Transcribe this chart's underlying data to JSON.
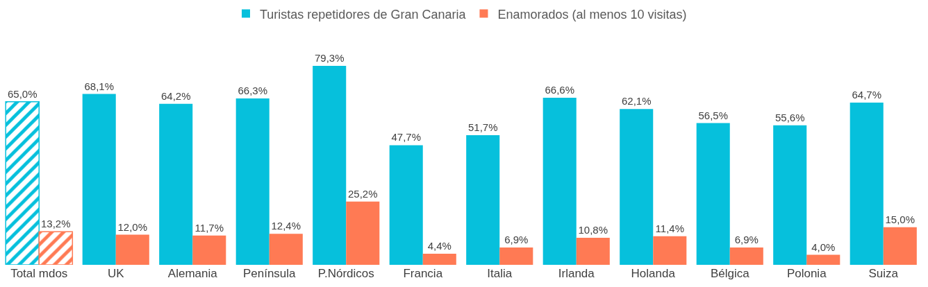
{
  "chart_data": {
    "type": "bar",
    "categories": [
      "Total mdos",
      "UK",
      "Alemania",
      "Península",
      "P.Nórdicos",
      "Francia",
      "Italia",
      "Irlanda",
      "Holanda",
      "Bélgica",
      "Polonia",
      "Suiza"
    ],
    "series": [
      {
        "name": "Turistas repetidores de Gran Canaria",
        "color": "#06c0dc",
        "values": [
          65.0,
          68.1,
          64.2,
          66.3,
          79.3,
          47.7,
          51.7,
          66.6,
          62.1,
          56.5,
          55.6,
          64.7
        ],
        "value_labels": [
          "65,0%",
          "68,1%",
          "64,2%",
          "66,3%",
          "79,3%",
          "47,7%",
          "51,7%",
          "66,6%",
          "62,1%",
          "56,5%",
          "55,6%",
          "64,7%"
        ]
      },
      {
        "name": "Enamorados (al menos 10 visitas)",
        "color": "#ff7a54",
        "values": [
          13.2,
          12.0,
          11.7,
          12.4,
          25.2,
          4.4,
          6.9,
          10.8,
          11.4,
          6.9,
          4.0,
          15.0
        ],
        "value_labels": [
          "13,2%",
          "12,0%",
          "11,7%",
          "12,4%",
          "25,2%",
          "4,4%",
          "6,9%",
          "10,8%",
          "11,4%",
          "6,9%",
          "4,0%",
          "15,0%"
        ]
      }
    ],
    "legend": "top"
  }
}
